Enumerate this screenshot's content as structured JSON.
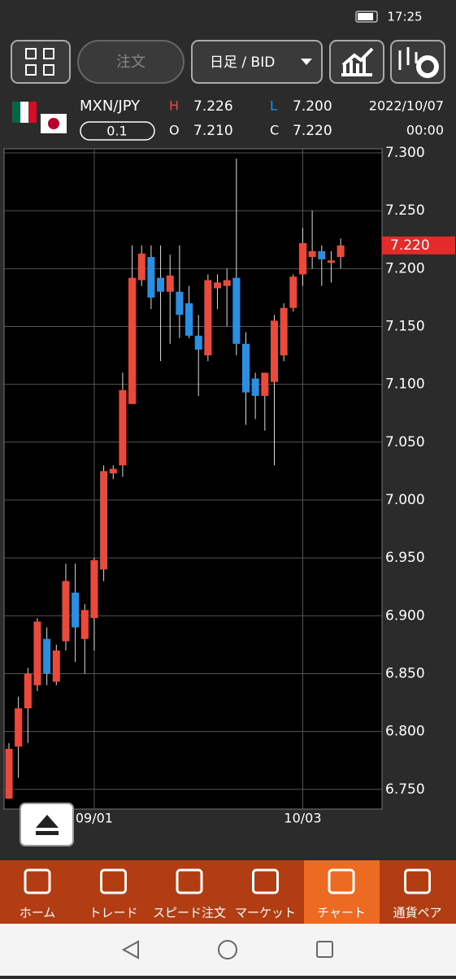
{
  "status_bar": {
    "time": "17:25"
  },
  "toolbar": {
    "order_button": "注文",
    "timeframe": "日足 / BID"
  },
  "header": {
    "pair": "MXN/JPY",
    "lot": "0.1",
    "h_label": "H",
    "high": "7.226",
    "o_label": "O",
    "open": "7.210",
    "l_label": "L",
    "low": "7.200",
    "c_label": "C",
    "close": "7.220",
    "date": "2022/10/07",
    "time": "00:00"
  },
  "chart_data": {
    "type": "candlestick",
    "categories": [
      null,
      null,
      null,
      null,
      null,
      null,
      null,
      null,
      null,
      "09/01",
      null,
      null,
      null,
      null,
      null,
      null,
      null,
      null,
      null,
      null,
      null,
      null,
      null,
      null,
      null,
      null,
      null,
      null,
      null,
      null,
      null,
      "10/03",
      null,
      null,
      null,
      null
    ],
    "open": [
      6.742,
      6.787,
      6.82,
      6.84,
      6.88,
      6.843,
      6.878,
      6.92,
      6.88,
      6.898,
      6.94,
      7.023,
      7.03,
      7.083,
      7.19,
      7.21,
      7.192,
      7.18,
      7.18,
      7.17,
      7.142,
      7.125,
      7.183,
      7.185,
      7.192,
      7.135,
      7.105,
      7.09,
      7.102,
      7.125,
      7.166,
      7.195,
      7.21,
      7.215,
      7.205,
      7.21
    ],
    "high": [
      6.79,
      6.83,
      6.855,
      6.898,
      6.89,
      6.875,
      6.945,
      6.945,
      6.91,
      6.95,
      7.03,
      7.03,
      7.11,
      7.22,
      7.22,
      7.22,
      7.22,
      7.212,
      7.22,
      7.185,
      7.16,
      7.195,
      7.195,
      7.2,
      7.295,
      7.145,
      7.11,
      7.11,
      7.16,
      7.17,
      7.195,
      7.235,
      7.25,
      7.22,
      7.215,
      7.226
    ],
    "low": [
      6.742,
      6.76,
      6.79,
      6.835,
      6.84,
      6.84,
      6.87,
      6.86,
      6.85,
      6.87,
      6.93,
      7.018,
      7.02,
      7.083,
      7.185,
      7.165,
      7.12,
      7.135,
      7.14,
      7.14,
      7.09,
      7.12,
      7.165,
      7.15,
      7.125,
      7.065,
      7.07,
      7.06,
      7.03,
      7.12,
      7.163,
      7.185,
      7.2,
      7.185,
      7.188,
      7.2
    ],
    "close": [
      6.785,
      6.82,
      6.85,
      6.895,
      6.85,
      6.87,
      6.93,
      6.89,
      6.905,
      6.948,
      7.025,
      7.027,
      7.095,
      7.192,
      7.213,
      7.175,
      7.18,
      7.194,
      7.16,
      7.142,
      7.13,
      7.19,
      7.188,
      7.19,
      7.135,
      7.093,
      7.09,
      7.11,
      7.155,
      7.166,
      7.193,
      7.222,
      7.215,
      7.208,
      7.207,
      7.22
    ],
    "up_color": "#ea4a3c",
    "down_color": "#2a8fe0",
    "ylim": [
      6.733,
      7.3035
    ],
    "yticks": [
      {
        "value": 6.75,
        "label": "6.750"
      },
      {
        "value": 6.8,
        "label": "6.800"
      },
      {
        "value": 6.85,
        "label": "6.850"
      },
      {
        "value": 6.9,
        "label": "6.900"
      },
      {
        "value": 6.95,
        "label": "6.950"
      },
      {
        "value": 7.0,
        "label": "7.000"
      },
      {
        "value": 7.05,
        "label": "7.050"
      },
      {
        "value": 7.1,
        "label": "7.100"
      },
      {
        "value": 7.15,
        "label": "7.150"
      },
      {
        "value": 7.2,
        "label": "7.200"
      },
      {
        "value": 7.25,
        "label": "7.250"
      },
      {
        "value": 7.3,
        "label": "7.300"
      }
    ],
    "last_price": {
      "value": 7.22,
      "label": "7.220"
    },
    "grid": true
  },
  "nav": [
    "ホーム",
    "トレード",
    "スピード注文",
    "マーケット",
    "チャート",
    "通貨ペア"
  ]
}
